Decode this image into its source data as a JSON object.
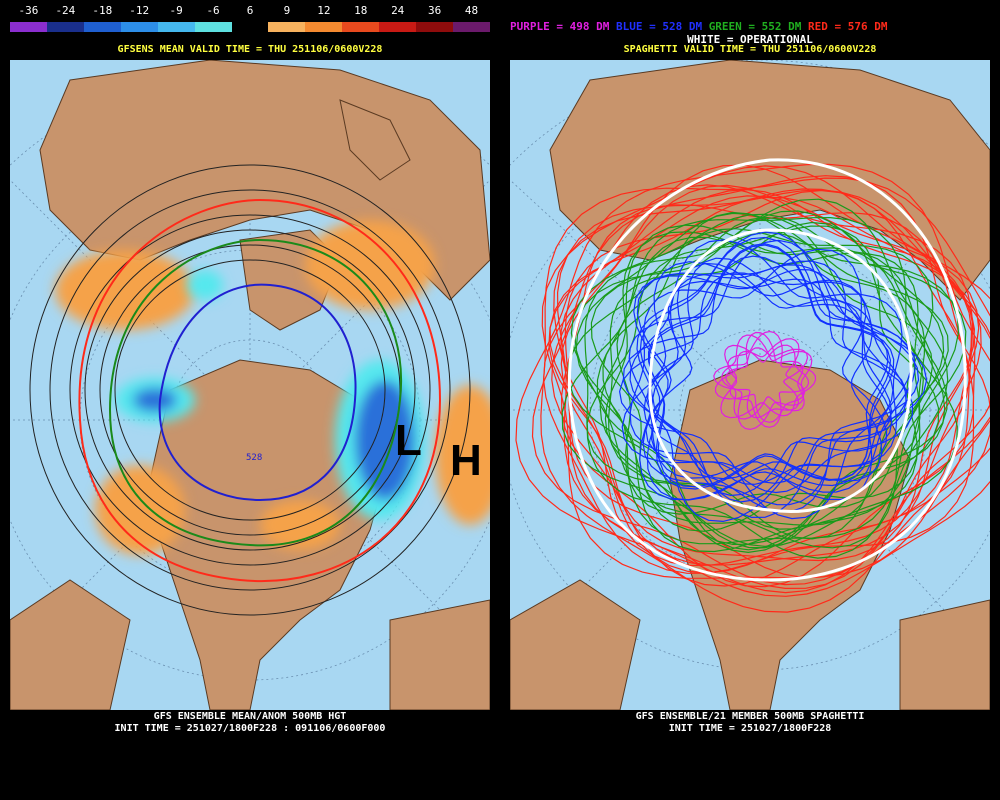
{
  "colors": {
    "ocean": "#a8d7f2",
    "land": "#c8946c",
    "orange": "#f5a24a",
    "cyan": "#55e8ee",
    "blue": "#2c6fd9",
    "purple": "#e020e0",
    "green": "#1a8a1a",
    "red": "#ff2a1a",
    "yellow": "#ffff40"
  },
  "left": {
    "legend_values": [
      "-36",
      "-24",
      "-18",
      "-12",
      "-9",
      "-6",
      "6",
      "9",
      "12",
      "18",
      "24",
      "36",
      "48"
    ],
    "legend_colors": [
      "#8b2ecf",
      "#1a2f8c",
      "#1f5fd0",
      "#2d8ee8",
      "#45b8ee",
      "#5ee0e0",
      "#000000",
      "#f7b25e",
      "#f48a30",
      "#e84a1e",
      "#c81a14",
      "#8f0c0c",
      "#6b1a6b"
    ],
    "header": "GFSENS MEAN VALID TIME = THU 251106/0600V228",
    "low_label": "L",
    "high_label": "H",
    "contour_label": "528",
    "footer_line1": "GFS ENSEMBLE MEAN/ANOM 500MB HGT",
    "footer_line2": "INIT TIME = 251027/1800F228 : 091106/0600F000"
  },
  "right": {
    "legend": {
      "purple": "PURPLE = 498 DM",
      "blue": "BLUE = 528 DM",
      "green": "GREEN = 552 DM",
      "red": "RED = 576 DM"
    },
    "white_label": "WHITE = OPERATIONAL",
    "header": "SPAGHETTI VALID TIME = THU 251106/0600V228",
    "footer_line1": "GFS ENSEMBLE/21 MEMBER 500MB SPAGHETTI",
    "footer_line2": "INIT TIME = 251027/1800F228"
  }
}
